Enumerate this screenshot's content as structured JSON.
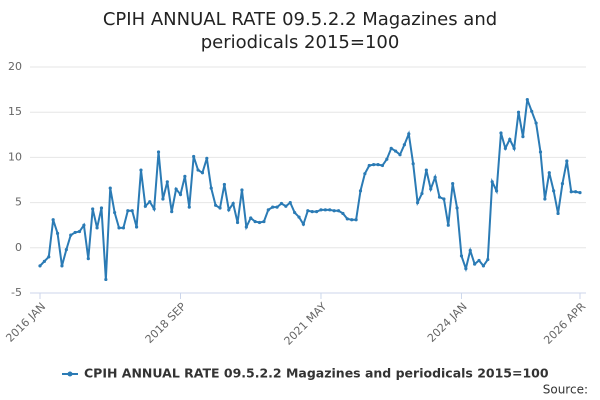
{
  "chart_data": {
    "type": "line",
    "title": "CPIH ANNUAL RATE 09.5.2.2 Magazines and periodicals 2015=100",
    "source": "Source:",
    "categories": [
      "2016 JAN",
      null,
      null,
      null,
      null,
      null,
      null,
      null,
      null,
      null,
      null,
      null,
      null,
      null,
      null,
      null,
      null,
      null,
      null,
      null,
      null,
      null,
      null,
      null,
      null,
      null,
      null,
      null,
      null,
      null,
      null,
      null,
      "2018 SEP",
      null,
      null,
      null,
      null,
      null,
      null,
      null,
      null,
      null,
      null,
      null,
      null,
      null,
      null,
      null,
      null,
      null,
      null,
      null,
      null,
      null,
      null,
      null,
      null,
      null,
      null,
      null,
      null,
      null,
      null,
      null,
      "2021 MAY",
      null,
      null,
      null,
      null,
      null,
      null,
      null,
      null,
      null,
      null,
      null,
      null,
      null,
      null,
      null,
      null,
      null,
      null,
      null,
      null,
      null,
      null,
      null,
      null,
      null,
      null,
      null,
      null,
      null,
      null,
      null,
      "2024 JAN",
      null,
      null,
      null,
      null,
      null,
      null,
      null,
      null,
      null,
      null,
      null,
      null,
      null,
      null,
      null,
      null,
      null,
      null,
      null,
      null,
      null,
      null,
      null,
      null,
      null,
      null,
      "2026 APR"
    ],
    "series": [
      {
        "name": "CPIH ANNUAL RATE 09.5.2.2 Magazines and periodicals 2015=100",
        "color": "#2b7bb5",
        "values": [
          -2.0,
          -1.5,
          -1.0,
          3.1,
          1.6,
          -2.0,
          -0.2,
          1.4,
          1.7,
          1.8,
          2.5,
          -1.2,
          4.3,
          2.2,
          4.4,
          -3.5,
          6.6,
          3.9,
          2.2,
          2.2,
          4.1,
          4.1,
          2.3,
          8.6,
          4.6,
          5.1,
          4.3,
          10.6,
          5.4,
          7.3,
          4.0,
          6.5,
          5.9,
          7.9,
          4.5,
          10.1,
          8.6,
          8.3,
          9.9,
          6.6,
          4.7,
          4.4,
          7.0,
          4.2,
          4.9,
          2.8,
          6.4,
          2.3,
          3.3,
          2.9,
          2.8,
          2.9,
          4.2,
          4.5,
          4.5,
          4.9,
          4.6,
          5.0,
          3.9,
          3.4,
          2.6,
          4.1,
          4.0,
          4.0,
          4.2,
          4.2,
          4.2,
          4.1,
          4.1,
          3.8,
          3.2,
          3.1,
          3.1,
          6.3,
          8.2,
          9.1,
          9.2,
          9.2,
          9.1,
          9.8,
          11.0,
          10.7,
          10.3,
          11.4,
          12.6,
          9.3,
          5.0,
          6.0,
          8.6,
          6.5,
          7.8,
          5.6,
          5.4,
          2.5,
          7.1,
          4.4,
          -0.9,
          -2.3,
          -0.3,
          -1.8,
          -1.4,
          -2.0,
          -1.3,
          7.3,
          6.3,
          12.7,
          11.0,
          12.0,
          11.0,
          15.0,
          12.3,
          16.4,
          15.1,
          13.8,
          10.6,
          5.4,
          8.3,
          6.3,
          3.8,
          7.1,
          9.6,
          6.2,
          6.2,
          6.1
        ]
      }
    ],
    "ylim": [
      -5,
      20
    ],
    "yticks": [
      -5,
      0,
      5,
      10,
      15,
      20
    ],
    "grid": true
  }
}
